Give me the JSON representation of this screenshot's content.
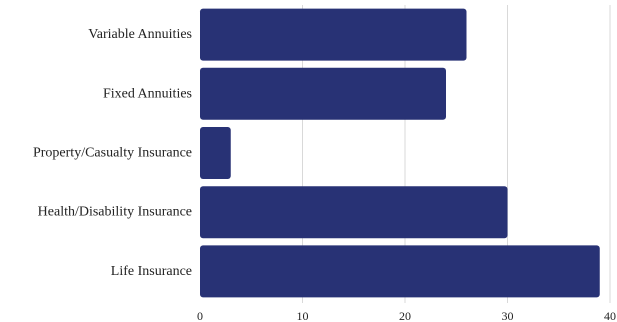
{
  "chart_data": {
    "type": "bar",
    "orientation": "horizontal",
    "categories": [
      "Variable Annuities",
      "Fixed Annuities",
      "Property/Casualty Insurance",
      "Health/Disability Insurance",
      "Life Insurance"
    ],
    "values": [
      26,
      24,
      3,
      30,
      39
    ],
    "xlim": [
      0,
      40
    ],
    "xticks": [
      0,
      10,
      20,
      30,
      40
    ],
    "xtick_labels": [
      "0",
      "10",
      "20",
      "30",
      "40"
    ],
    "title": "",
    "xlabel": "",
    "ylabel": "",
    "grid": "vertical",
    "legend": "none",
    "bar_color": "#283275",
    "grid_color": "#d9d9d9"
  }
}
